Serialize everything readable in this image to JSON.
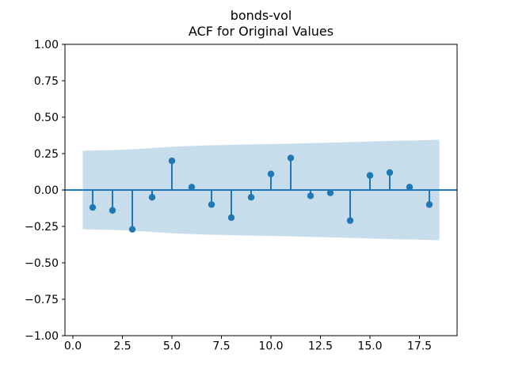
{
  "figure": {
    "background": "#ffffff"
  },
  "chart_data": {
    "type": "stem",
    "title": "bonds-vol",
    "subtitle": "ACF for Original Values",
    "xlabel": "",
    "ylabel": "",
    "grid": false,
    "legend": "none",
    "xlim": [
      -0.4,
      19.4
    ],
    "ylim": [
      -1.0,
      1.0
    ],
    "x_tick_values": [
      0.0,
      2.5,
      5.0,
      7.5,
      10.0,
      12.5,
      15.0,
      17.5
    ],
    "x_tick_labels": [
      "0.0",
      "2.5",
      "5.0",
      "7.5",
      "10.0",
      "12.5",
      "15.0",
      "17.5"
    ],
    "y_tick_values": [
      1.0,
      0.75,
      0.5,
      0.25,
      0.0,
      -0.25,
      -0.5,
      -0.75,
      -1.0
    ],
    "y_tick_labels": [
      "1.00",
      "0.75",
      "0.50",
      "0.25",
      "0.00",
      "−0.25",
      "−0.50",
      "−0.75",
      "−1.00"
    ],
    "lags": [
      1,
      2,
      3,
      4,
      5,
      6,
      7,
      8,
      9,
      10,
      11,
      12,
      13,
      14,
      15,
      16,
      17,
      18
    ],
    "acf_values": [
      -0.12,
      -0.14,
      -0.27,
      -0.05,
      0.2,
      0.02,
      -0.1,
      -0.19,
      -0.05,
      0.11,
      0.22,
      -0.04,
      -0.02,
      -0.21,
      0.1,
      0.12,
      0.02,
      -0.1
    ],
    "zero_line_value": 0.0,
    "confidence_band": {
      "x": [
        0.5,
        1,
        2,
        3,
        4,
        5,
        6,
        7,
        8,
        9,
        10,
        11,
        12,
        13,
        14,
        15,
        16,
        17,
        18,
        18.5
      ],
      "half_width": [
        0.27,
        0.271,
        0.274,
        0.279,
        0.288,
        0.297,
        0.303,
        0.307,
        0.31,
        0.313,
        0.315,
        0.318,
        0.322,
        0.325,
        0.329,
        0.333,
        0.337,
        0.34,
        0.343,
        0.345
      ]
    },
    "colors": {
      "stem": "#1f77b4",
      "marker": "#1f77b4",
      "zero_line": "#1f77b4",
      "band": "#1f77b4",
      "band_alpha": 0.25,
      "spine": "#000000",
      "tick": "#000000",
      "title": "#000000"
    }
  }
}
